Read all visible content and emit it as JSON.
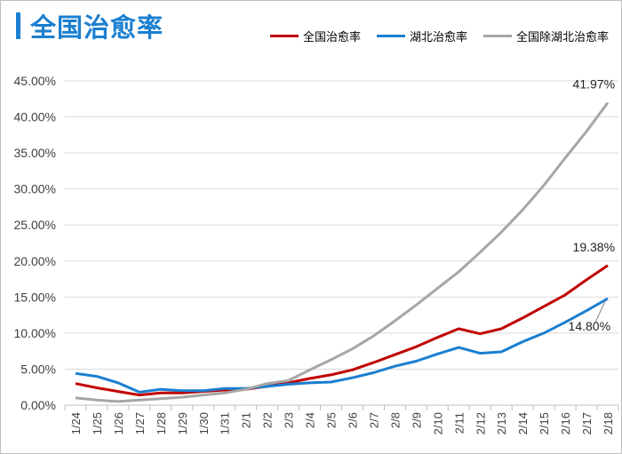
{
  "chart_data": {
    "type": "line",
    "title": "全国治愈率",
    "xlabel": "",
    "ylabel": "",
    "ylim": [
      0,
      45
    ],
    "yticks": [
      "0.00%",
      "5.00%",
      "10.00%",
      "15.00%",
      "20.00%",
      "25.00%",
      "30.00%",
      "35.00%",
      "40.00%",
      "45.00%"
    ],
    "grid": true,
    "legend_position": "top-right",
    "categories": [
      "1/24",
      "1/25",
      "1/26",
      "1/27",
      "1/28",
      "1/29",
      "1/30",
      "1/31",
      "2/1",
      "2/2",
      "2/3",
      "2/4",
      "2/5",
      "2/6",
      "2/7",
      "2/8",
      "2/9",
      "2/10",
      "2/11",
      "2/12",
      "2/13",
      "2/14",
      "2/15",
      "2/16",
      "2/17",
      "2/18"
    ],
    "series": [
      {
        "name": "全国治愈率",
        "color": "#c00000",
        "values": [
          3.0,
          2.4,
          1.9,
          1.4,
          1.7,
          1.7,
          1.9,
          2.1,
          2.2,
          2.6,
          3.1,
          3.7,
          4.2,
          4.9,
          5.9,
          7.0,
          8.1,
          9.4,
          10.6,
          9.9,
          10.6,
          12.1,
          13.7,
          15.3,
          17.4,
          19.38
        ],
        "end_label": "19.38%"
      },
      {
        "name": "湖北治愈率",
        "color": "#1a7fd0",
        "values": [
          4.4,
          4.0,
          3.1,
          1.8,
          2.2,
          2.0,
          2.0,
          2.3,
          2.3,
          2.6,
          2.9,
          3.1,
          3.2,
          3.8,
          4.5,
          5.4,
          6.1,
          7.1,
          8.0,
          7.2,
          7.4,
          8.8,
          10.0,
          11.5,
          13.1,
          14.8
        ],
        "end_label": "14.80%"
      },
      {
        "name": "全国除湖北治愈率",
        "color": "#a6a6a6",
        "values": [
          1.0,
          0.7,
          0.5,
          0.7,
          0.9,
          1.1,
          1.4,
          1.7,
          2.2,
          3.0,
          3.4,
          4.9,
          6.3,
          7.8,
          9.6,
          11.7,
          13.9,
          16.2,
          18.5,
          21.2,
          24.0,
          27.1,
          30.5,
          34.3,
          38.0,
          41.97
        ],
        "end_label": "41.97%"
      }
    ]
  }
}
